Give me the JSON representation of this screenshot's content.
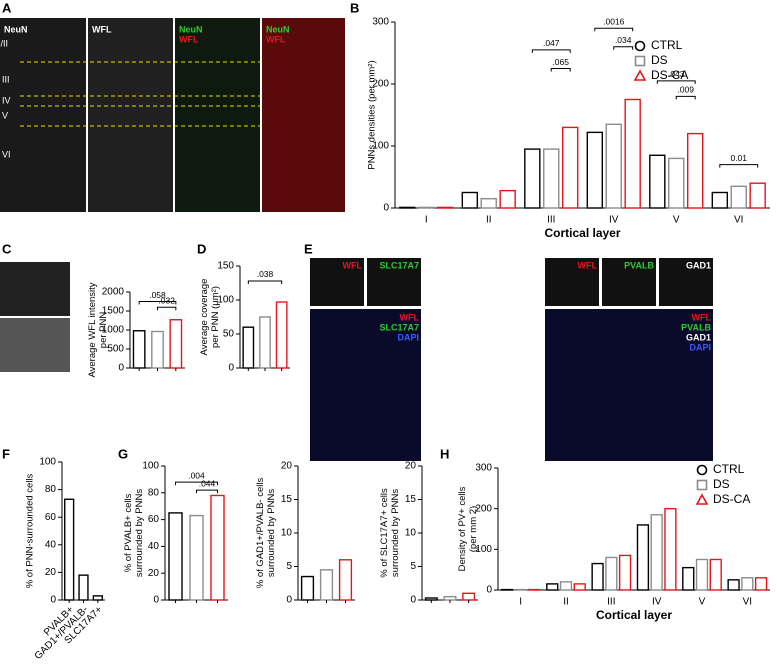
{
  "panels": [
    "A",
    "B",
    "C",
    "D",
    "E",
    "F",
    "G",
    "H"
  ],
  "panel_a": {
    "labels": [
      "NeuN",
      "WFL",
      "NeuN",
      "WFL",
      "NeuN",
      "WFL"
    ],
    "layers": [
      "I/II",
      "III",
      "IV",
      "V",
      "VI"
    ]
  },
  "panel_e": {
    "labels": [
      "WFL",
      "SLC17A7",
      "WFL",
      "SLC17A7",
      "DAPI",
      "WFL",
      "PVALB",
      "GAD1",
      "WFL",
      "PVALB",
      "GAD1",
      "DAPI"
    ]
  },
  "chart_data": [
    {
      "type": "bar",
      "ylabel": [
        "PNNs densities (per mm²)"
      ],
      "xlabel": "Cortical layer",
      "categories": [
        "I",
        "II",
        "III",
        "IV",
        "V",
        "VI"
      ],
      "series": [
        {
          "name": "CTRL",
          "color": "#000000",
          "values": [
            1,
            25,
            95,
            122,
            85,
            25
          ]
        },
        {
          "name": "DS",
          "color": "#8c8c8c",
          "values": [
            1,
            15,
            95,
            135,
            80,
            35
          ]
        },
        {
          "name": "DS-CA",
          "color": "#e8141c",
          "values": [
            1,
            28,
            130,
            175,
            120,
            40
          ]
        }
      ],
      "ylim": [
        0,
        300
      ],
      "yticks": [
        0,
        100,
        200,
        300
      ],
      "legend": "upper right",
      "annotations": [
        ".047",
        ".065",
        ".0016",
        ".034",
        ".043",
        ".009",
        "0.01"
      ]
    },
    {
      "type": "bar",
      "ylabel": [
        "Average WFL intensity",
        "per PNN"
      ],
      "categories": [
        null,
        null,
        null
      ],
      "values": [
        980,
        960,
        1270
      ],
      "colors": [
        "#000000",
        "#8c8c8c",
        "#e8141c"
      ],
      "ylim": [
        0,
        2000
      ],
      "yticks": [
        0,
        500,
        1000,
        1500,
        2000
      ],
      "annotations": [
        ".058",
        ".032"
      ]
    },
    {
      "type": "bar",
      "ylabel": [
        "Average coverage",
        "per PNN (µm²)"
      ],
      "categories": [
        null,
        null,
        null
      ],
      "values": [
        60,
        75,
        97
      ],
      "colors": [
        "#000000",
        "#8c8c8c",
        "#e8141c"
      ],
      "ylim": [
        0,
        150
      ],
      "yticks": [
        0,
        50,
        100,
        150
      ],
      "annotations": [
        ".038"
      ]
    },
    {
      "type": "bar",
      "ylabel": [
        "% of PNN-surrounded cells"
      ],
      "categories": [
        "PVALB+",
        "GAD1+/PVALB-",
        "SLC17A7+"
      ],
      "values": [
        73,
        18,
        3
      ],
      "colors": [
        "#000000",
        "#000000",
        "#000000"
      ],
      "ylim": [
        0,
        100
      ],
      "yticks": [
        0,
        20,
        40,
        60,
        80,
        100
      ]
    },
    {
      "type": "bar",
      "ylabel": [
        "% of PVALB+ cells",
        "surrounded by PNNs"
      ],
      "categories": [
        null,
        null,
        null
      ],
      "values": [
        65,
        63,
        78
      ],
      "colors": [
        "#000000",
        "#8c8c8c",
        "#e8141c"
      ],
      "ylim": [
        0,
        100
      ],
      "yticks": [
        0,
        20,
        40,
        60,
        80,
        100
      ],
      "annotations": [
        ".004",
        ".044"
      ]
    },
    {
      "type": "bar",
      "ylabel": [
        "% of GAD1+/PVALB- cells",
        "surrounded by PNNs"
      ],
      "categories": [
        null,
        null,
        null
      ],
      "values": [
        3.5,
        4.5,
        6
      ],
      "colors": [
        "#000000",
        "#8c8c8c",
        "#e8141c"
      ],
      "ylim": [
        0,
        20
      ],
      "yticks": [
        0,
        5,
        10,
        15,
        20
      ]
    },
    {
      "type": "bar",
      "ylabel": [
        "% of SLC17A7+ cells",
        "surrounded by PNNs"
      ],
      "categories": [
        null,
        null,
        null
      ],
      "values": [
        0.3,
        0.5,
        1
      ],
      "colors": [
        "#000000",
        "#8c8c8c",
        "#e8141c"
      ],
      "ylim": [
        0,
        20
      ],
      "yticks": [
        0,
        5,
        10,
        15,
        20
      ]
    },
    {
      "type": "bar",
      "ylabel": [
        "Density of PV+ cells",
        "(per mm 2)"
      ],
      "xlabel": "Cortical layer",
      "categories": [
        "I",
        "II",
        "III",
        "IV",
        "V",
        "VI"
      ],
      "series": [
        {
          "name": "CTRL",
          "color": "#000000",
          "values": [
            1,
            15,
            65,
            160,
            55,
            25
          ]
        },
        {
          "name": "DS",
          "color": "#8c8c8c",
          "values": [
            1,
            20,
            80,
            185,
            75,
            30
          ]
        },
        {
          "name": "DS-CA",
          "color": "#e8141c",
          "values": [
            1,
            15,
            85,
            200,
            75,
            30
          ]
        }
      ],
      "ylim": [
        0,
        300
      ],
      "yticks": [
        0,
        100,
        200,
        300
      ],
      "legend": "upper right"
    }
  ]
}
